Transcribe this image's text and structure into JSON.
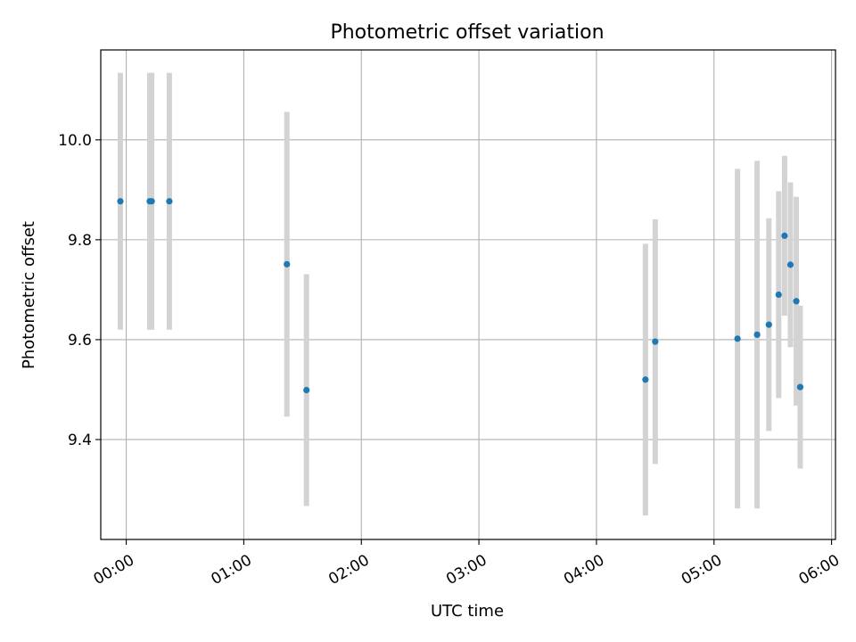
{
  "chart_data": {
    "type": "scatter",
    "title": "Photometric offset variation",
    "xlabel": "UTC time",
    "ylabel": "Photometric offset",
    "grid": true,
    "legend": "none",
    "xlim": [
      "23:47",
      "06:02"
    ],
    "ylim": [
      9.2,
      10.18
    ],
    "x_ticks": [
      "00:00",
      "01:00",
      "02:00",
      "03:00",
      "04:00",
      "05:00",
      "06:00"
    ],
    "y_ticks": [
      "9.4",
      "9.6",
      "9.8",
      "10.0"
    ],
    "colors": {
      "point": "#1f77b4",
      "errorbar": "#d3d3d3",
      "grid": "#b0b0b0"
    },
    "series": [
      {
        "points": [
          {
            "x": "23:57",
            "y": 9.877,
            "err": 0.257
          },
          {
            "x": "00:12",
            "y": 9.877,
            "err": 0.257
          },
          {
            "x": "00:13",
            "y": 9.877,
            "err": 0.257
          },
          {
            "x": "00:22",
            "y": 9.877,
            "err": 0.257
          },
          {
            "x": "01:22",
            "y": 9.751,
            "err": 0.305
          },
          {
            "x": "01:32",
            "y": 9.499,
            "err": 0.232
          },
          {
            "x": "04:25",
            "y": 9.52,
            "err": 0.272
          },
          {
            "x": "04:30",
            "y": 9.596,
            "err": 0.245
          },
          {
            "x": "05:12",
            "y": 9.602,
            "err": 0.34
          },
          {
            "x": "05:22",
            "y": 9.61,
            "err": 0.348
          },
          {
            "x": "05:28",
            "y": 9.63,
            "err": 0.213
          },
          {
            "x": "05:33",
            "y": 9.69,
            "err": 0.207
          },
          {
            "x": "05:36",
            "y": 9.808,
            "err": 0.16
          },
          {
            "x": "05:39",
            "y": 9.75,
            "err": 0.165
          },
          {
            "x": "05:42",
            "y": 9.677,
            "err": 0.209
          },
          {
            "x": "05:44",
            "y": 9.505,
            "err": 0.163
          }
        ]
      }
    ]
  }
}
